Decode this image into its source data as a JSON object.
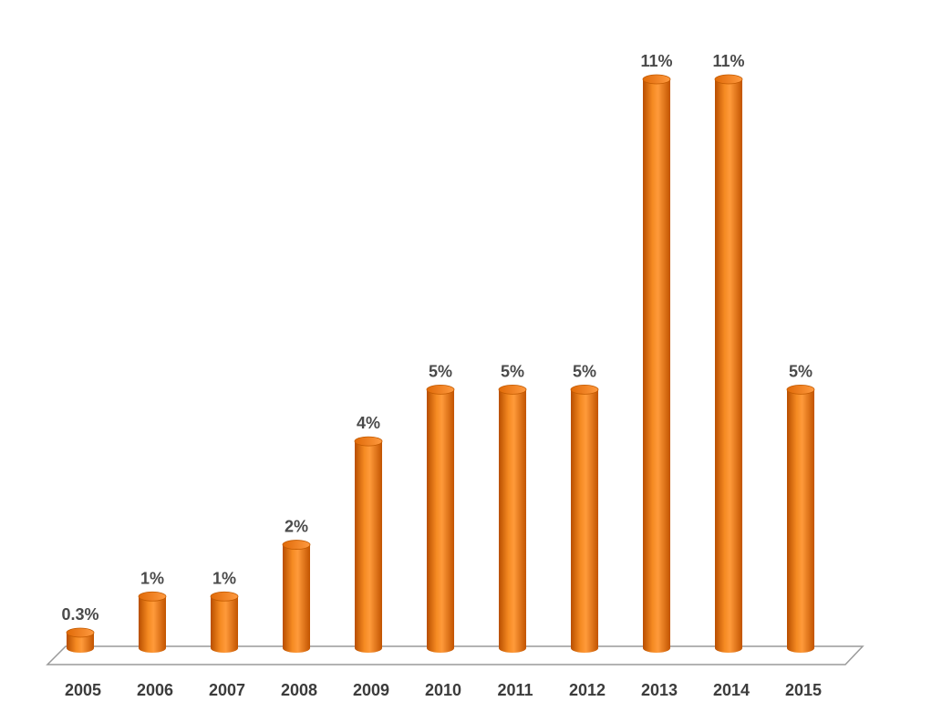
{
  "chart_data": {
    "type": "bar",
    "style": "3d-cylinder",
    "categories": [
      "2005",
      "2006",
      "2007",
      "2008",
      "2009",
      "2010",
      "2011",
      "2012",
      "2013",
      "2014",
      "2015"
    ],
    "values": [
      0.3,
      1,
      1,
      2,
      4,
      5,
      5,
      5,
      11,
      11,
      5
    ],
    "data_labels": [
      "0.3%",
      "1%",
      "1%",
      "2%",
      "4%",
      "5%",
      "5%",
      "5%",
      "11%",
      "11%",
      "5%"
    ],
    "title": "",
    "xlabel": "",
    "ylabel": "",
    "ylim": [
      0,
      11
    ],
    "grid": false,
    "legend": "none",
    "colors": {
      "bar": "#f07a10",
      "bar_dark": "#b84e00",
      "bar_light": "#ffa655",
      "floor": "#9a9a9a"
    }
  }
}
